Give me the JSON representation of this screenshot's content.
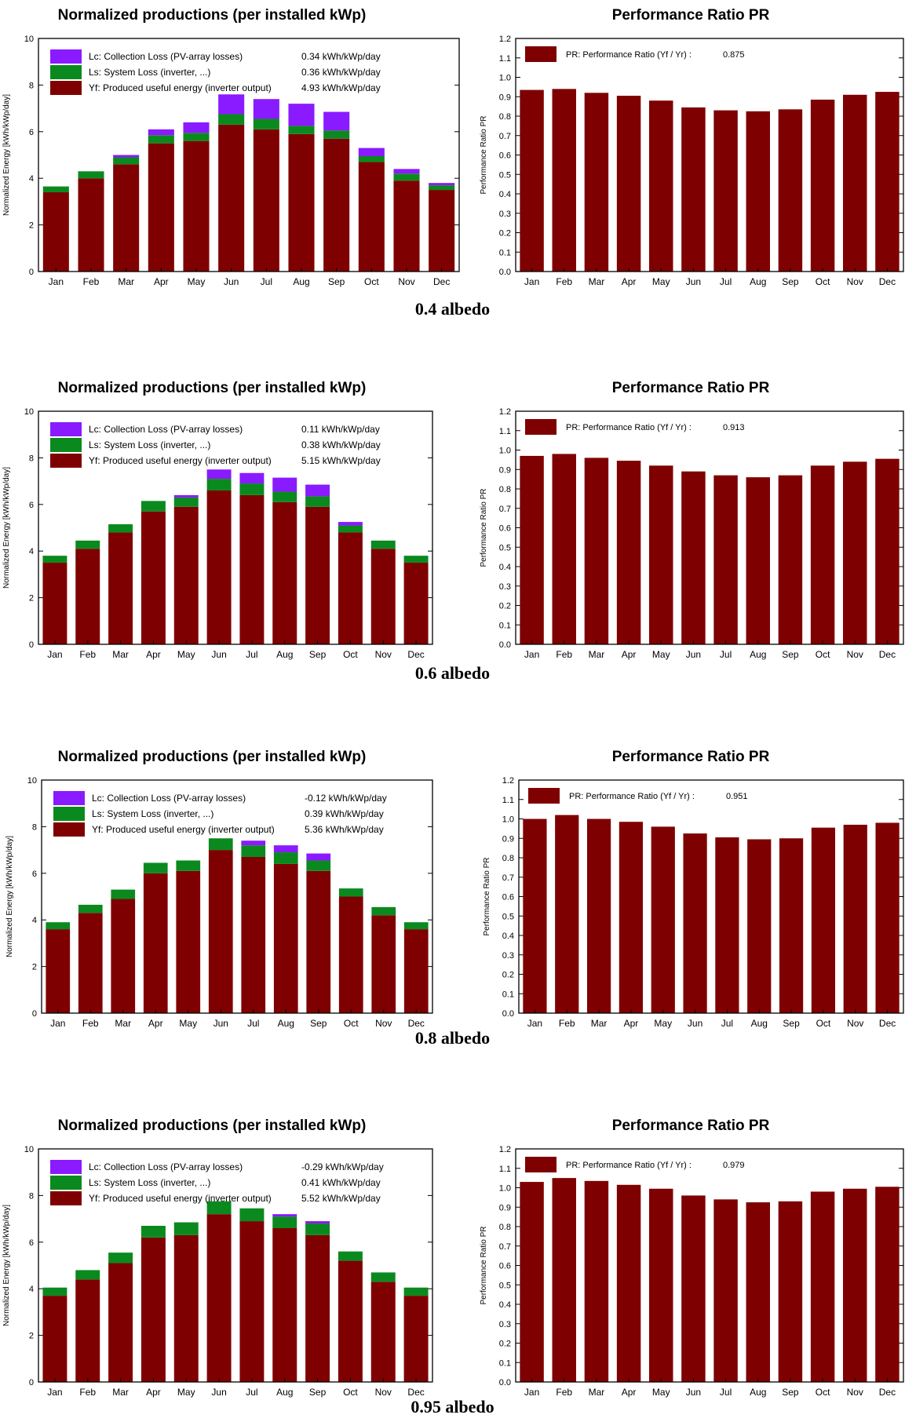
{
  "colors": {
    "produced": "#7f0000",
    "system_loss": "#0a8a1e",
    "collection_loss": "#8a1aff",
    "pr_bar": "#7f0000",
    "axis": "#000000"
  },
  "chart_data": [
    {
      "type": "bar",
      "stacked": true,
      "title": "Normalized productions (per installed kWp)",
      "xlabel": "",
      "ylabel": "Normalized Energy [kWh/kWp/day]",
      "ylim": [
        0,
        10
      ],
      "yticks": [
        "0",
        "2",
        "4",
        "6",
        "8",
        "10"
      ],
      "categories": [
        "Jan",
        "Feb",
        "Mar",
        "Apr",
        "May",
        "Jun",
        "Jul",
        "Aug",
        "Sep",
        "Oct",
        "Nov",
        "Dec"
      ],
      "legend_position": "top-left",
      "series": [
        {
          "name": "Yf: Produced useful energy  (inverter output)",
          "value_text": "4.93 kWh/kWp/day",
          "color": "#7f0000",
          "values": [
            3.4,
            4.0,
            4.6,
            5.5,
            5.6,
            6.3,
            6.1,
            5.9,
            5.7,
            4.7,
            3.9,
            3.5
          ]
        },
        {
          "name": "Ls: System Loss  (inverter, ...)",
          "value_text": "0.36 kWh/kWp/day",
          "color": "#0a8a1e",
          "values": [
            0.25,
            0.3,
            0.3,
            0.35,
            0.35,
            0.45,
            0.45,
            0.35,
            0.35,
            0.25,
            0.3,
            0.2
          ]
        },
        {
          "name": "Lc: Collection Loss (PV-array losses)",
          "value_text": "0.34 kWh/kWp/day",
          "color": "#8a1aff",
          "values": [
            0.0,
            0.0,
            0.1,
            0.25,
            0.45,
            0.85,
            0.85,
            0.95,
            0.8,
            0.35,
            0.2,
            0.1
          ]
        }
      ],
      "caption": "0.4 albedo"
    },
    {
      "type": "bar",
      "title": "Performance Ratio PR",
      "ylabel": "Performance Ratio PR",
      "ylim": [
        0,
        1.2
      ],
      "yticks": [
        "0.0",
        "0.1",
        "0.2",
        "0.3",
        "0.4",
        "0.5",
        "0.6",
        "0.7",
        "0.8",
        "0.9",
        "1.0",
        "1.1",
        "1.2"
      ],
      "categories": [
        "Jan",
        "Feb",
        "Mar",
        "Apr",
        "May",
        "Jun",
        "Jul",
        "Aug",
        "Sep",
        "Oct",
        "Nov",
        "Dec"
      ],
      "legend_position": "top-left",
      "series": [
        {
          "name": "PR: Performance Ratio (Yf / Yr) :",
          "value_text": "0.875",
          "color": "#7f0000",
          "values": [
            0.935,
            0.94,
            0.92,
            0.905,
            0.88,
            0.845,
            0.83,
            0.825,
            0.835,
            0.885,
            0.91,
            0.925
          ]
        }
      ]
    },
    {
      "type": "bar",
      "stacked": true,
      "title": "Normalized productions (per installed kWp)",
      "xlabel": "",
      "ylabel": "Normalized Energy [kWh/kWp/day]",
      "ylim": [
        0,
        10
      ],
      "yticks": [
        "0",
        "2",
        "4",
        "6",
        "8",
        "10"
      ],
      "categories": [
        "Jan",
        "Feb",
        "Mar",
        "Apr",
        "May",
        "Jun",
        "Jul",
        "Aug",
        "Sep",
        "Oct",
        "Nov",
        "Dec"
      ],
      "legend_position": "top-left",
      "series": [
        {
          "name": "Yf: Produced useful energy  (inverter output)",
          "value_text": "5.15 kWh/kWp/day",
          "color": "#7f0000",
          "values": [
            3.5,
            4.1,
            4.8,
            5.7,
            5.9,
            6.6,
            6.4,
            6.1,
            5.9,
            4.8,
            4.1,
            3.5
          ]
        },
        {
          "name": "Ls: System Loss  (inverter, ...)",
          "value_text": "0.38 kWh/kWp/day",
          "color": "#0a8a1e",
          "values": [
            0.3,
            0.35,
            0.35,
            0.45,
            0.4,
            0.5,
            0.5,
            0.45,
            0.45,
            0.3,
            0.35,
            0.3
          ]
        },
        {
          "name": "Lc: Collection Loss (PV-array losses)",
          "value_text": "0.11 kWh/kWp/day",
          "color": "#8a1aff",
          "values": [
            0.0,
            0.0,
            0.0,
            0.0,
            0.1,
            0.4,
            0.45,
            0.6,
            0.5,
            0.15,
            0.0,
            0.0
          ]
        }
      ],
      "caption": "0.6 albedo"
    },
    {
      "type": "bar",
      "title": "Performance Ratio PR",
      "ylabel": "Performance Ratio PR",
      "ylim": [
        0,
        1.2
      ],
      "yticks": [
        "0.0",
        "0.1",
        "0.2",
        "0.3",
        "0.4",
        "0.5",
        "0.6",
        "0.7",
        "0.8",
        "0.9",
        "1.0",
        "1.1",
        "1.2"
      ],
      "categories": [
        "Jan",
        "Feb",
        "Mar",
        "Apr",
        "May",
        "Jun",
        "Jul",
        "Aug",
        "Sep",
        "Oct",
        "Nov",
        "Dec"
      ],
      "legend_position": "top-left",
      "series": [
        {
          "name": "PR: Performance Ratio (Yf / Yr) :",
          "value_text": "0.913",
          "color": "#7f0000",
          "values": [
            0.97,
            0.98,
            0.96,
            0.945,
            0.92,
            0.89,
            0.87,
            0.86,
            0.87,
            0.92,
            0.94,
            0.955
          ]
        }
      ]
    },
    {
      "type": "bar",
      "stacked": true,
      "title": "Normalized productions (per installed kWp)",
      "xlabel": "",
      "ylabel": "Normalized Energy [kWh/kWp/day]",
      "ylim": [
        0,
        10
      ],
      "yticks": [
        "0",
        "2",
        "4",
        "6",
        "8",
        "10"
      ],
      "categories": [
        "Jan",
        "Feb",
        "Mar",
        "Apr",
        "May",
        "Jun",
        "Jul",
        "Aug",
        "Sep",
        "Oct",
        "Nov",
        "Dec"
      ],
      "legend_position": "top-left",
      "series": [
        {
          "name": "Yf: Produced useful energy  (inverter output)",
          "value_text": "5.36 kWh/kWp/day",
          "color": "#7f0000",
          "values": [
            3.6,
            4.3,
            4.9,
            6.0,
            6.1,
            7.0,
            6.7,
            6.4,
            6.1,
            5.0,
            4.2,
            3.6
          ]
        },
        {
          "name": "Ls: System Loss  (inverter, ...)",
          "value_text": "0.39 kWh/kWp/day",
          "color": "#0a8a1e",
          "values": [
            0.3,
            0.35,
            0.4,
            0.45,
            0.45,
            0.5,
            0.5,
            0.5,
            0.45,
            0.35,
            0.35,
            0.3
          ]
        },
        {
          "name": "Lc: Collection Loss (PV-array losses)",
          "value_text": "-0.12 kWh/kWp/day",
          "color": "#8a1aff",
          "values": [
            0.0,
            0.0,
            0.0,
            0.0,
            0.0,
            0.0,
            0.2,
            0.3,
            0.3,
            0.0,
            0.0,
            0.0
          ]
        }
      ],
      "caption": "0.8 albedo"
    },
    {
      "type": "bar",
      "title": "Performance Ratio PR",
      "ylabel": "Performance Ratio PR",
      "ylim": [
        0,
        1.2
      ],
      "yticks": [
        "0.0",
        "0.1",
        "0.2",
        "0.3",
        "0.4",
        "0.5",
        "0.6",
        "0.7",
        "0.8",
        "0.9",
        "1.0",
        "1.1",
        "1.2"
      ],
      "categories": [
        "Jan",
        "Feb",
        "Mar",
        "Apr",
        "May",
        "Jun",
        "Jul",
        "Aug",
        "Sep",
        "Oct",
        "Nov",
        "Dec"
      ],
      "legend_position": "top-left",
      "series": [
        {
          "name": "PR: Performance Ratio (Yf / Yr) :",
          "value_text": "0.951",
          "color": "#7f0000",
          "values": [
            1.0,
            1.02,
            1.0,
            0.985,
            0.96,
            0.925,
            0.905,
            0.895,
            0.9,
            0.955,
            0.97,
            0.98
          ]
        }
      ]
    },
    {
      "type": "bar",
      "stacked": true,
      "title": "Normalized productions (per installed kWp)",
      "xlabel": "",
      "ylabel": "Normalized Energy [kWh/kWp/day]",
      "ylim": [
        0,
        10
      ],
      "yticks": [
        "0",
        "2",
        "4",
        "6",
        "8",
        "10"
      ],
      "categories": [
        "Jan",
        "Feb",
        "Mar",
        "Apr",
        "May",
        "Jun",
        "Jul",
        "Aug",
        "Sep",
        "Oct",
        "Nov",
        "Dec"
      ],
      "legend_position": "top-left",
      "series": [
        {
          "name": "Yf: Produced useful energy  (inverter output)",
          "value_text": "5.52 kWh/kWp/day",
          "color": "#7f0000",
          "values": [
            3.7,
            4.4,
            5.1,
            6.2,
            6.3,
            7.2,
            6.9,
            6.6,
            6.3,
            5.2,
            4.3,
            3.7
          ]
        },
        {
          "name": "Ls: System Loss  (inverter, ...)",
          "value_text": "0.41 kWh/kWp/day",
          "color": "#0a8a1e",
          "values": [
            0.35,
            0.4,
            0.45,
            0.5,
            0.55,
            0.55,
            0.55,
            0.5,
            0.5,
            0.4,
            0.4,
            0.35
          ]
        },
        {
          "name": "Lc: Collection Loss (PV-array losses)",
          "value_text": "-0.29 kWh/kWp/day",
          "color": "#8a1aff",
          "values": [
            0.0,
            0.0,
            0.0,
            0.0,
            0.0,
            0.0,
            0.0,
            0.1,
            0.1,
            0.0,
            0.0,
            0.0
          ]
        }
      ],
      "caption": "0.95 albedo"
    },
    {
      "type": "bar",
      "title": "Performance Ratio PR",
      "ylabel": "Performance Ratio PR",
      "ylim": [
        0,
        1.2
      ],
      "yticks": [
        "0.0",
        "0.1",
        "0.2",
        "0.3",
        "0.4",
        "0.5",
        "0.6",
        "0.7",
        "0.8",
        "0.9",
        "1.0",
        "1.1",
        "1.2"
      ],
      "categories": [
        "Jan",
        "Feb",
        "Mar",
        "Apr",
        "May",
        "Jun",
        "Jul",
        "Aug",
        "Sep",
        "Oct",
        "Nov",
        "Dec"
      ],
      "legend_position": "top-left",
      "series": [
        {
          "name": "PR: Performance Ratio (Yf / Yr) :",
          "value_text": "0.979",
          "color": "#7f0000",
          "values": [
            1.03,
            1.05,
            1.035,
            1.015,
            0.995,
            0.96,
            0.94,
            0.925,
            0.93,
            0.98,
            0.995,
            1.005
          ]
        }
      ]
    }
  ]
}
